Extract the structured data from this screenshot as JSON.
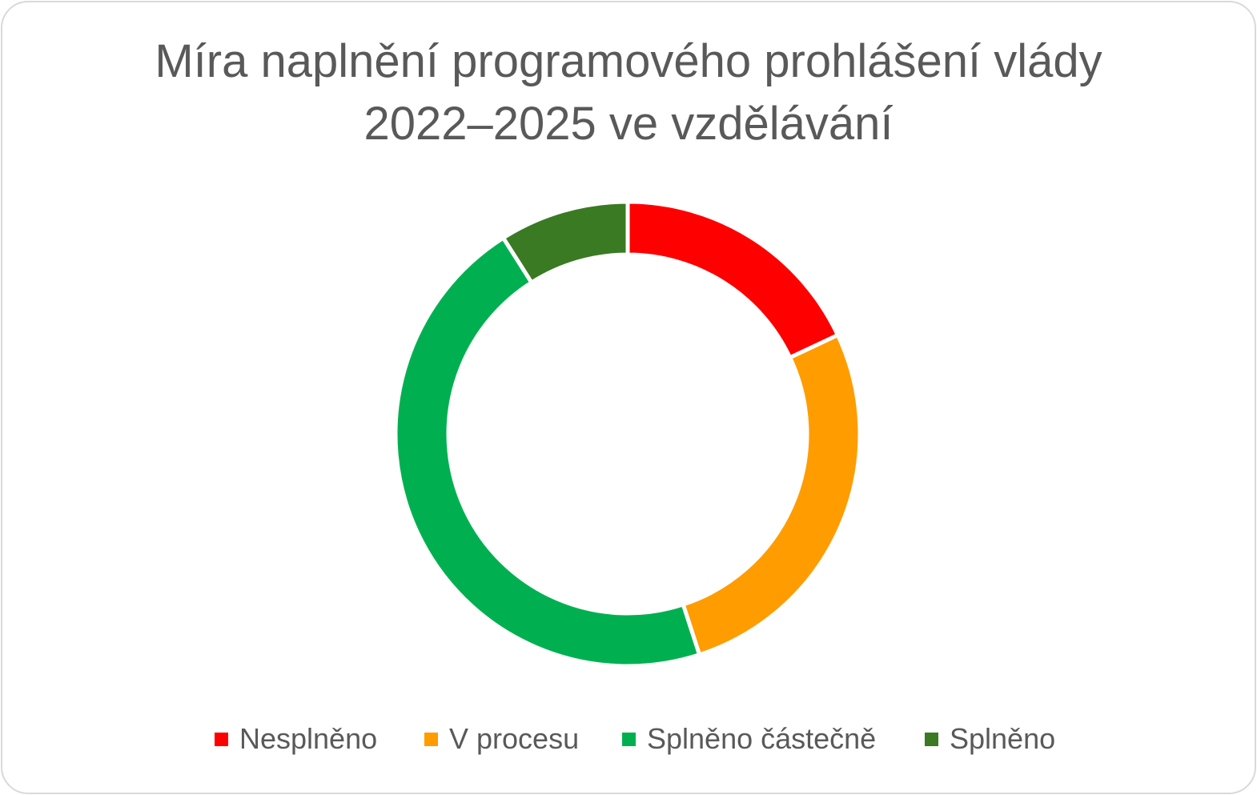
{
  "chart_data": {
    "type": "pie",
    "variant": "doughnut",
    "title_lines": [
      "Míra naplnění programového prohlášení vlády",
      "2022–2025 ve vzdělávání"
    ],
    "categories": [
      "Nesplněno",
      "V procesu",
      "Splněno částečně",
      "Splněno"
    ],
    "values": [
      18,
      27,
      46,
      9
    ],
    "value_unit": "%",
    "colors": [
      "#ff0000",
      "#ff9c00",
      "#00b050",
      "#3a7a22"
    ],
    "start_angle_deg": 0,
    "direction": "clockwise",
    "legend_position": "bottom"
  }
}
